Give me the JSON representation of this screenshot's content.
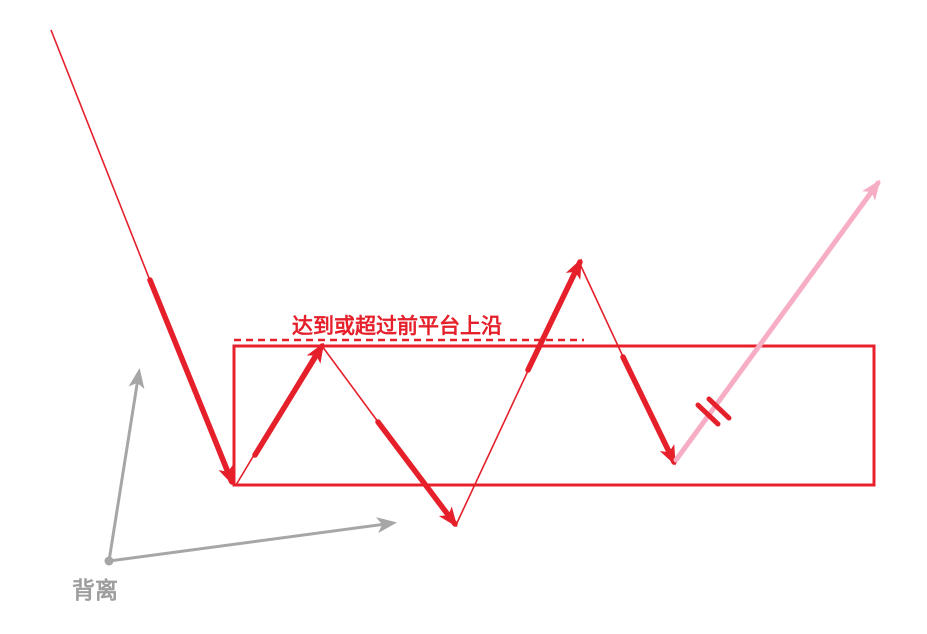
{
  "annotation": {
    "upper_edge_label": "达到或超过前平台上沿",
    "divergence_label": "背离"
  },
  "colors": {
    "primary_red": "#e5202b",
    "box_red": "#e8202c",
    "pink_projection": "#f7aec5",
    "gray_axis": "#a6a6a6",
    "label_gray": "#9e9e9e",
    "background": "#ffffff"
  },
  "icons": {
    "break_mark": "double-slash-icon"
  }
}
